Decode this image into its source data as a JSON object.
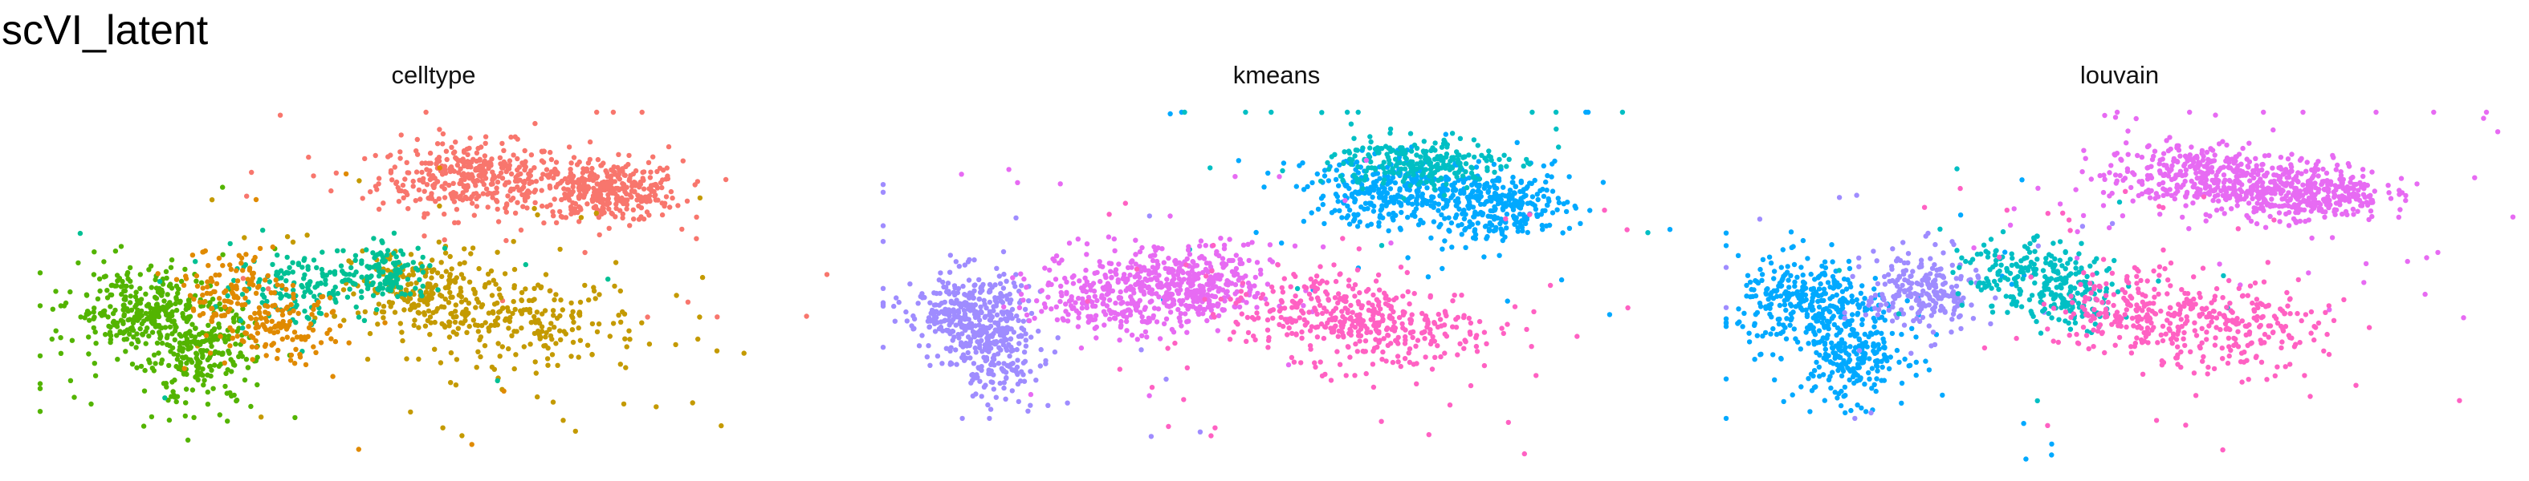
{
  "figure": {
    "title": "scVI_latent"
  },
  "chart_data": [
    {
      "type": "scatter",
      "title": "celltype",
      "xlabel": "",
      "ylabel": "",
      "axes_visible": false,
      "grid": false,
      "legend": "none",
      "series": [
        {
          "color": "#F8766D",
          "centers": [
            [
              0.55,
              0.82
            ],
            [
              0.72,
              0.78
            ]
          ],
          "spread": [
            [
              0.1,
              0.08
            ],
            [
              0.08,
              0.07
            ]
          ],
          "count": 700,
          "sparse": 40
        },
        {
          "color": "#C49A00",
          "centers": [
            [
              0.48,
              0.5
            ],
            [
              0.62,
              0.42
            ]
          ],
          "spread": [
            [
              0.07,
              0.1
            ],
            [
              0.12,
              0.1
            ]
          ],
          "count": 420,
          "sparse": 45
        },
        {
          "color": "#53B400",
          "centers": [
            [
              0.12,
              0.45
            ],
            [
              0.2,
              0.33
            ]
          ],
          "spread": [
            [
              0.07,
              0.1
            ],
            [
              0.06,
              0.12
            ]
          ],
          "count": 520,
          "sparse": 20
        },
        {
          "color": "#00C094",
          "centers": [
            [
              0.33,
              0.52
            ],
            [
              0.44,
              0.55
            ]
          ],
          "spread": [
            [
              0.07,
              0.09
            ],
            [
              0.05,
              0.07
            ]
          ],
          "count": 260,
          "sparse": 10
        },
        {
          "color": "#E08A00",
          "centers": [
            [
              0.24,
              0.5
            ],
            [
              0.31,
              0.4
            ]
          ],
          "spread": [
            [
              0.05,
              0.1
            ],
            [
              0.06,
              0.08
            ]
          ],
          "count": 230,
          "sparse": 10
        }
      ]
    },
    {
      "type": "scatter",
      "title": "kmeans",
      "xlabel": "",
      "ylabel": "",
      "axes_visible": false,
      "grid": false,
      "legend": "none",
      "series": [
        {
          "color": "#00A9FF",
          "centers": [
            [
              0.65,
              0.78
            ],
            [
              0.78,
              0.74
            ]
          ],
          "spread": [
            [
              0.09,
              0.08
            ],
            [
              0.08,
              0.08
            ]
          ],
          "count": 600,
          "sparse": 30
        },
        {
          "color": "#00BFC4",
          "centers": [
            [
              0.68,
              0.86
            ]
          ],
          "spread": [
            [
              0.09,
              0.06
            ]
          ],
          "count": 240,
          "sparse": 20
        },
        {
          "color": "#9F8CFF",
          "centers": [
            [
              0.1,
              0.45
            ],
            [
              0.14,
              0.35
            ]
          ],
          "spread": [
            [
              0.06,
              0.1
            ],
            [
              0.05,
              0.12
            ]
          ],
          "count": 480,
          "sparse": 20
        },
        {
          "color": "#E76BF3",
          "centers": [
            [
              0.3,
              0.5
            ],
            [
              0.4,
              0.52
            ]
          ],
          "spread": [
            [
              0.09,
              0.1
            ],
            [
              0.08,
              0.09
            ]
          ],
          "count": 600,
          "sparse": 20
        },
        {
          "color": "#FF61C3",
          "centers": [
            [
              0.55,
              0.45
            ],
            [
              0.66,
              0.4
            ]
          ],
          "spread": [
            [
              0.09,
              0.1
            ],
            [
              0.1,
              0.1
            ]
          ],
          "count": 420,
          "sparse": 40
        }
      ]
    },
    {
      "type": "scatter",
      "title": "louvain",
      "xlabel": "",
      "ylabel": "",
      "axes_visible": false,
      "grid": false,
      "legend": "none",
      "series": [
        {
          "color": "#E76BF3",
          "centers": [
            [
              0.6,
              0.82
            ],
            [
              0.74,
              0.78
            ]
          ],
          "spread": [
            [
              0.1,
              0.08
            ],
            [
              0.08,
              0.07
            ]
          ],
          "count": 700,
          "sparse": 40
        },
        {
          "color": "#00A9FF",
          "centers": [
            [
              0.1,
              0.47
            ],
            [
              0.16,
              0.34
            ]
          ],
          "spread": [
            [
              0.07,
              0.1
            ],
            [
              0.06,
              0.12
            ]
          ],
          "count": 540,
          "sparse": 20
        },
        {
          "color": "#9F8CFF",
          "centers": [
            [
              0.25,
              0.5
            ]
          ],
          "spread": [
            [
              0.06,
              0.1
            ]
          ],
          "count": 220,
          "sparse": 10
        },
        {
          "color": "#00BFC4",
          "centers": [
            [
              0.37,
              0.55
            ],
            [
              0.44,
              0.5
            ]
          ],
          "spread": [
            [
              0.06,
              0.08
            ],
            [
              0.05,
              0.08
            ]
          ],
          "count": 280,
          "sparse": 10
        },
        {
          "color": "#FF61C3",
          "centers": [
            [
              0.52,
              0.45
            ],
            [
              0.64,
              0.4
            ]
          ],
          "spread": [
            [
              0.08,
              0.1
            ],
            [
              0.1,
              0.1
            ]
          ],
          "count": 400,
          "sparse": 40
        }
      ]
    }
  ]
}
